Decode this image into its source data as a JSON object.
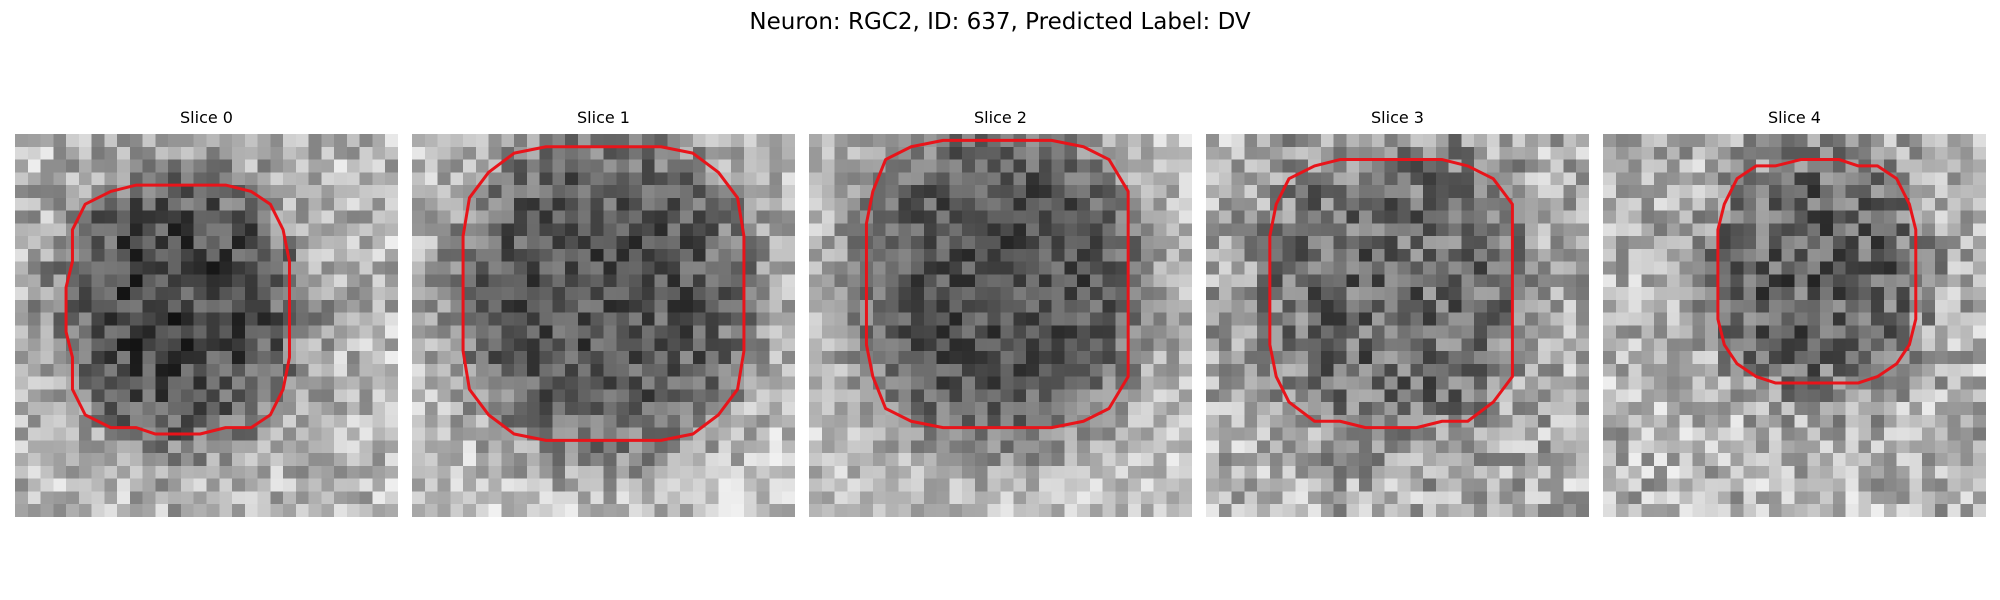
{
  "figure": {
    "title": "Neuron: RGC2, ID: 637, Predicted Label: DV"
  },
  "style": {
    "outline_color": "#e8141a",
    "colormap": "grayscale",
    "background": "#ffffff"
  },
  "panels": [
    {
      "title": "Slice 0"
    },
    {
      "title": "Slice 1"
    },
    {
      "title": "Slice 2"
    },
    {
      "title": "Slice 3"
    },
    {
      "title": "Slice 4"
    }
  ]
}
